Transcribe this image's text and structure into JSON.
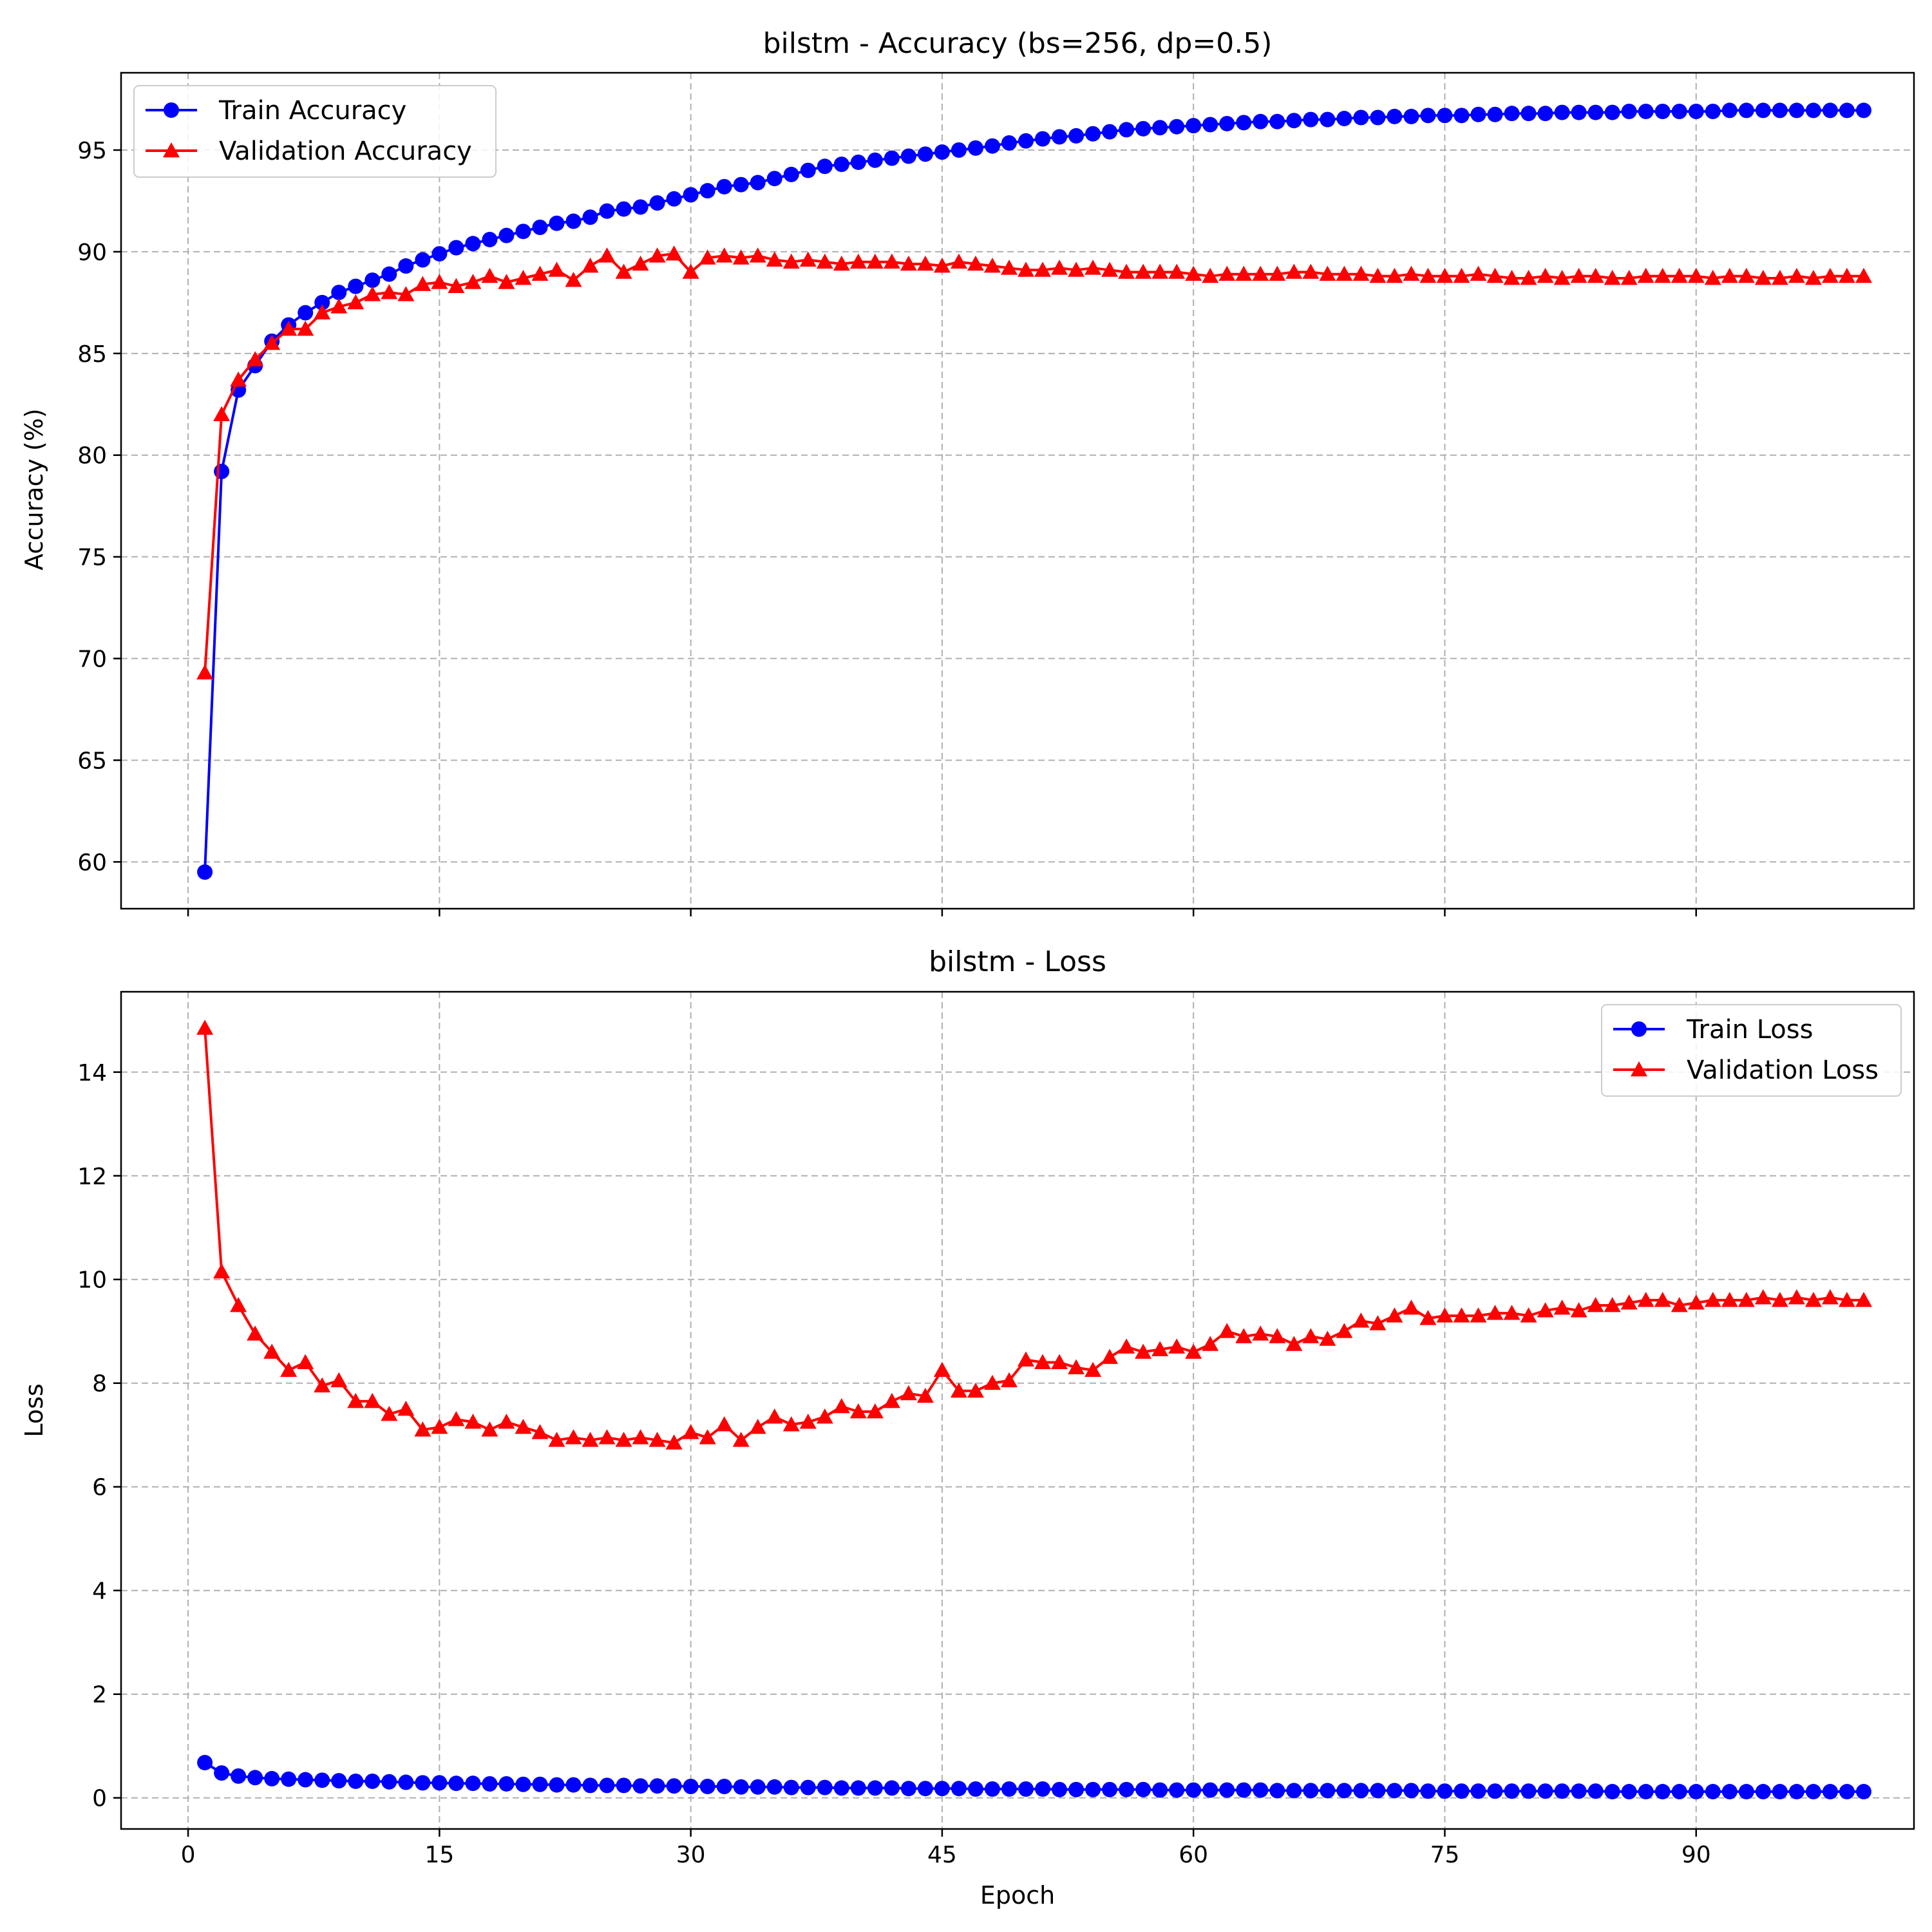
{
  "colors": {
    "train": "#0000ff",
    "validation": "#ff0000",
    "grid": "#b0b0b0",
    "axes": "#000000",
    "legend_border": "#cccccc"
  },
  "chart_data": [
    {
      "type": "line",
      "title": "bilstm - Accuracy (bs=256, dp=0.5)",
      "xlabel": "",
      "ylabel": "Accuracy (%)",
      "xlim": [
        -4,
        103
      ],
      "ylim": [
        57.7,
        98.8
      ],
      "x_ticks": [
        0,
        15,
        30,
        45,
        60,
        75,
        90
      ],
      "y_ticks": [
        60,
        65,
        70,
        75,
        80,
        85,
        90,
        95
      ],
      "grid": true,
      "legend_position": "top-left",
      "series": [
        {
          "name": "Train Accuracy",
          "color": "#0000ff",
          "marker": "circle",
          "values": [
            59.5,
            79.2,
            83.2,
            84.4,
            85.6,
            86.4,
            87.0,
            87.5,
            88.0,
            88.3,
            88.6,
            88.9,
            89.3,
            89.6,
            89.9,
            90.2,
            90.4,
            90.6,
            90.8,
            91.0,
            91.2,
            91.4,
            91.5,
            91.7,
            92.0,
            92.1,
            92.2,
            92.4,
            92.6,
            92.8,
            93.0,
            93.2,
            93.3,
            93.4,
            93.6,
            93.8,
            94.0,
            94.2,
            94.3,
            94.4,
            94.5,
            94.6,
            94.7,
            94.8,
            94.9,
            95.0,
            95.1,
            95.2,
            95.35,
            95.45,
            95.55,
            95.65,
            95.7,
            95.8,
            95.9,
            96.0,
            96.05,
            96.1,
            96.15,
            96.2,
            96.25,
            96.3,
            96.35,
            96.4,
            96.4,
            96.45,
            96.5,
            96.5,
            96.55,
            96.6,
            96.6,
            96.65,
            96.65,
            96.7,
            96.7,
            96.7,
            96.75,
            96.75,
            96.8,
            96.8,
            96.8,
            96.85,
            96.85,
            96.85,
            96.85,
            96.9,
            96.9,
            96.9,
            96.9,
            96.9,
            96.9,
            96.95,
            96.95,
            96.95,
            96.95,
            96.95,
            96.95,
            96.95,
            96.95,
            96.95
          ]
        },
        {
          "name": "Validation Accuracy",
          "color": "#ff0000",
          "marker": "triangle",
          "values": [
            69.3,
            82.0,
            83.7,
            84.7,
            85.5,
            86.2,
            86.2,
            87.0,
            87.3,
            87.5,
            87.9,
            88.0,
            87.9,
            88.4,
            88.5,
            88.3,
            88.5,
            88.8,
            88.5,
            88.7,
            88.9,
            89.1,
            88.6,
            89.3,
            89.8,
            89.0,
            89.4,
            89.8,
            89.9,
            89.0,
            89.7,
            89.8,
            89.7,
            89.8,
            89.6,
            89.5,
            89.6,
            89.5,
            89.4,
            89.5,
            89.5,
            89.5,
            89.4,
            89.4,
            89.3,
            89.5,
            89.4,
            89.3,
            89.2,
            89.1,
            89.1,
            89.2,
            89.1,
            89.2,
            89.1,
            89.0,
            89.0,
            89.0,
            89.0,
            88.9,
            88.8,
            88.9,
            88.9,
            88.9,
            88.9,
            89.0,
            89.0,
            88.9,
            88.9,
            88.9,
            88.8,
            88.8,
            88.9,
            88.8,
            88.8,
            88.8,
            88.9,
            88.8,
            88.7,
            88.7,
            88.8,
            88.7,
            88.8,
            88.8,
            88.7,
            88.7,
            88.8,
            88.8,
            88.8,
            88.8,
            88.7,
            88.8,
            88.8,
            88.7,
            88.7,
            88.8,
            88.7,
            88.8,
            88.8,
            88.8
          ]
        }
      ]
    },
    {
      "type": "line",
      "title": "bilstm - Loss",
      "xlabel": "Epoch",
      "ylabel": "Loss",
      "xlim": [
        -4,
        103
      ],
      "ylim": [
        -0.6,
        15.55
      ],
      "x_ticks": [
        0,
        15,
        30,
        45,
        60,
        75,
        90
      ],
      "y_ticks": [
        0,
        2,
        4,
        6,
        8,
        10,
        12,
        14
      ],
      "grid": true,
      "legend_position": "top-right",
      "series": [
        {
          "name": "Train Loss",
          "color": "#0000ff",
          "marker": "circle",
          "values": [
            0.68,
            0.48,
            0.42,
            0.39,
            0.37,
            0.36,
            0.35,
            0.34,
            0.33,
            0.32,
            0.32,
            0.31,
            0.3,
            0.29,
            0.29,
            0.28,
            0.28,
            0.27,
            0.27,
            0.26,
            0.26,
            0.25,
            0.25,
            0.24,
            0.24,
            0.24,
            0.23,
            0.23,
            0.23,
            0.22,
            0.22,
            0.22,
            0.21,
            0.21,
            0.21,
            0.2,
            0.2,
            0.2,
            0.19,
            0.19,
            0.19,
            0.19,
            0.18,
            0.18,
            0.18,
            0.18,
            0.17,
            0.17,
            0.17,
            0.17,
            0.17,
            0.16,
            0.16,
            0.16,
            0.16,
            0.16,
            0.16,
            0.15,
            0.15,
            0.15,
            0.15,
            0.15,
            0.15,
            0.15,
            0.14,
            0.14,
            0.14,
            0.14,
            0.14,
            0.14,
            0.14,
            0.14,
            0.14,
            0.13,
            0.13,
            0.13,
            0.13,
            0.13,
            0.13,
            0.13,
            0.13,
            0.13,
            0.13,
            0.13,
            0.12,
            0.12,
            0.12,
            0.12,
            0.12,
            0.12,
            0.12,
            0.12,
            0.12,
            0.12,
            0.12,
            0.12,
            0.12,
            0.12,
            0.12,
            0.12
          ]
        },
        {
          "name": "Validation Loss",
          "color": "#ff0000",
          "marker": "triangle",
          "values": [
            14.85,
            10.15,
            9.5,
            8.95,
            8.6,
            8.25,
            8.4,
            7.95,
            8.05,
            7.65,
            7.65,
            7.4,
            7.5,
            7.1,
            7.15,
            7.3,
            7.25,
            7.1,
            7.25,
            7.15,
            7.05,
            6.9,
            6.95,
            6.9,
            6.95,
            6.9,
            6.95,
            6.9,
            6.85,
            7.05,
            6.95,
            7.2,
            6.9,
            7.15,
            7.35,
            7.2,
            7.25,
            7.35,
            7.55,
            7.45,
            7.45,
            7.65,
            7.8,
            7.75,
            8.25,
            7.85,
            7.85,
            8.0,
            8.05,
            8.45,
            8.4,
            8.4,
            8.3,
            8.25,
            8.5,
            8.7,
            8.6,
            8.65,
            8.7,
            8.6,
            8.75,
            9.0,
            8.9,
            8.95,
            8.9,
            8.75,
            8.9,
            8.85,
            9.0,
            9.2,
            9.15,
            9.3,
            9.45,
            9.25,
            9.3,
            9.3,
            9.3,
            9.35,
            9.35,
            9.3,
            9.4,
            9.45,
            9.4,
            9.5,
            9.5,
            9.55,
            9.6,
            9.6,
            9.5,
            9.55,
            9.6,
            9.6,
            9.6,
            9.65,
            9.6,
            9.65,
            9.6,
            9.65,
            9.6,
            9.6
          ]
        }
      ]
    }
  ]
}
